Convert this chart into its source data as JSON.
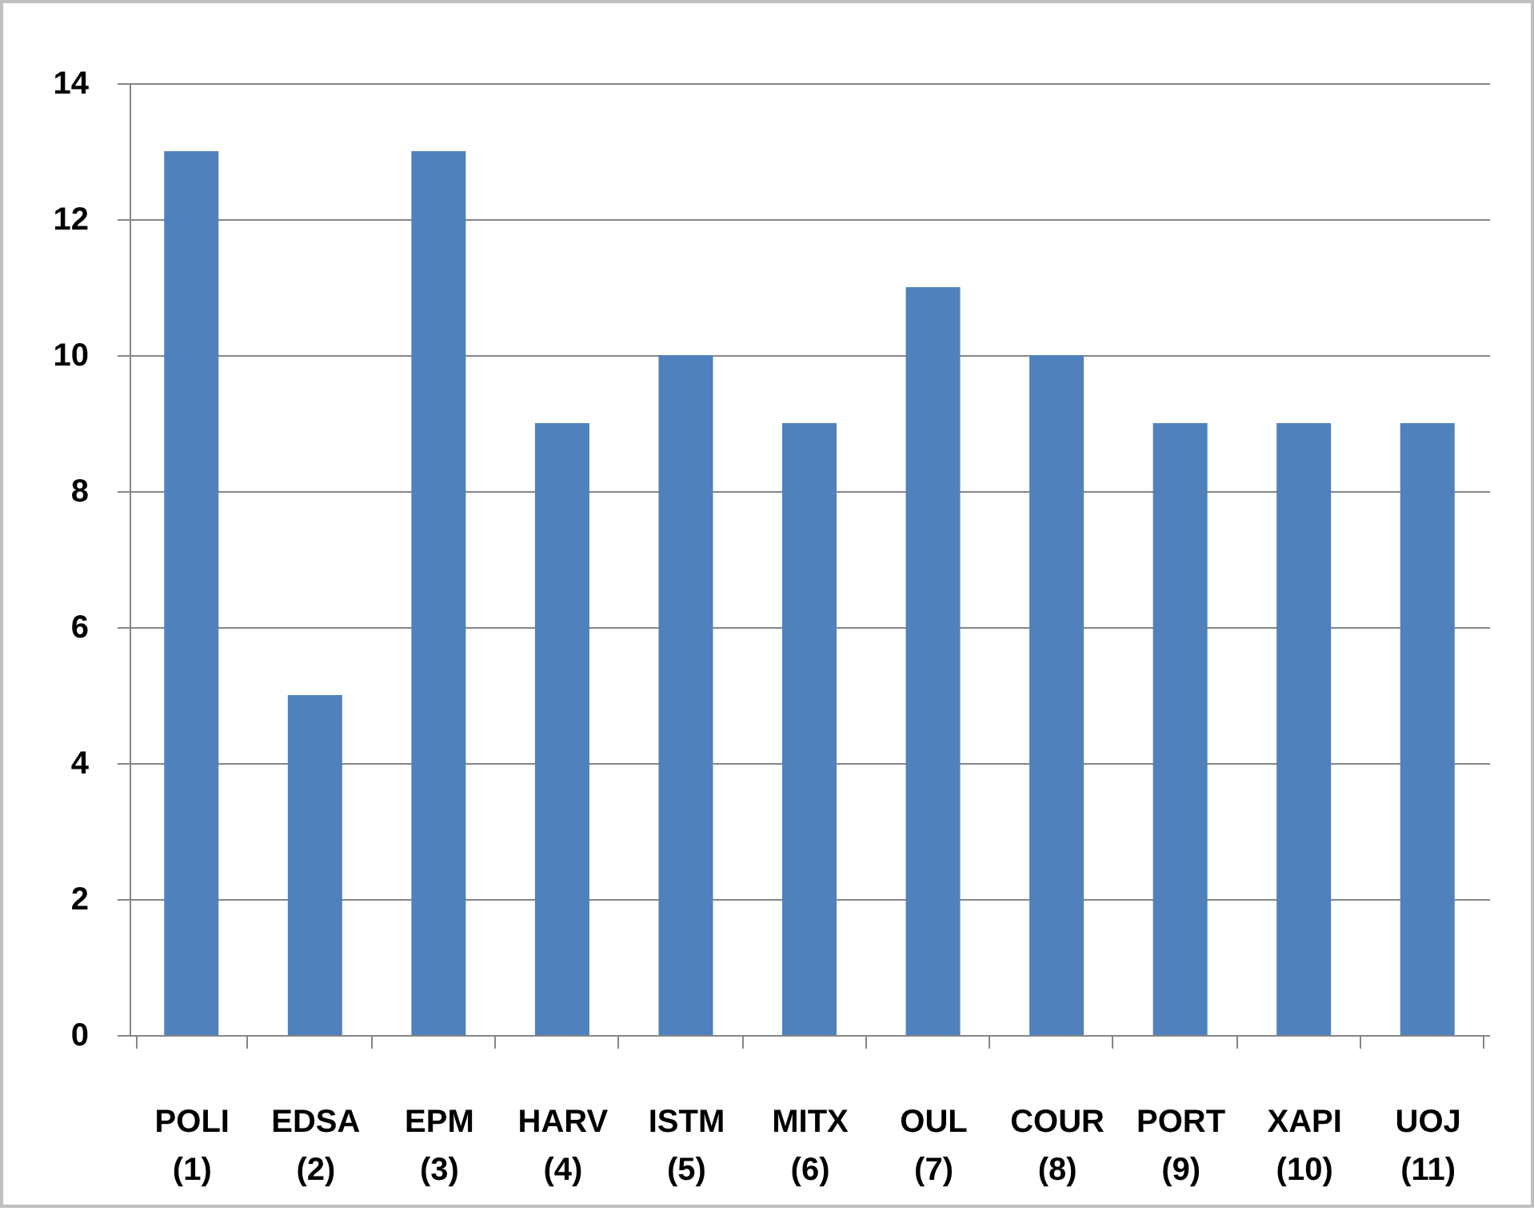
{
  "chart_data": {
    "type": "bar",
    "categories": [
      "POLI (1)",
      "EDSA (2)",
      "EPM (3)",
      "HARV (4)",
      "ISTM (5)",
      "MITX (6)",
      "OUL (7)",
      "COUR (8)",
      "PORT (9)",
      "XAPI (10)",
      "UOJ (11)"
    ],
    "values": [
      13,
      5,
      13,
      9,
      10,
      9,
      11,
      10,
      9,
      9,
      9
    ],
    "color": "#4f81bd",
    "ylim": [
      0,
      14
    ],
    "yticks": [
      0,
      2,
      4,
      6,
      8,
      10,
      12,
      14
    ],
    "grid": "y"
  }
}
